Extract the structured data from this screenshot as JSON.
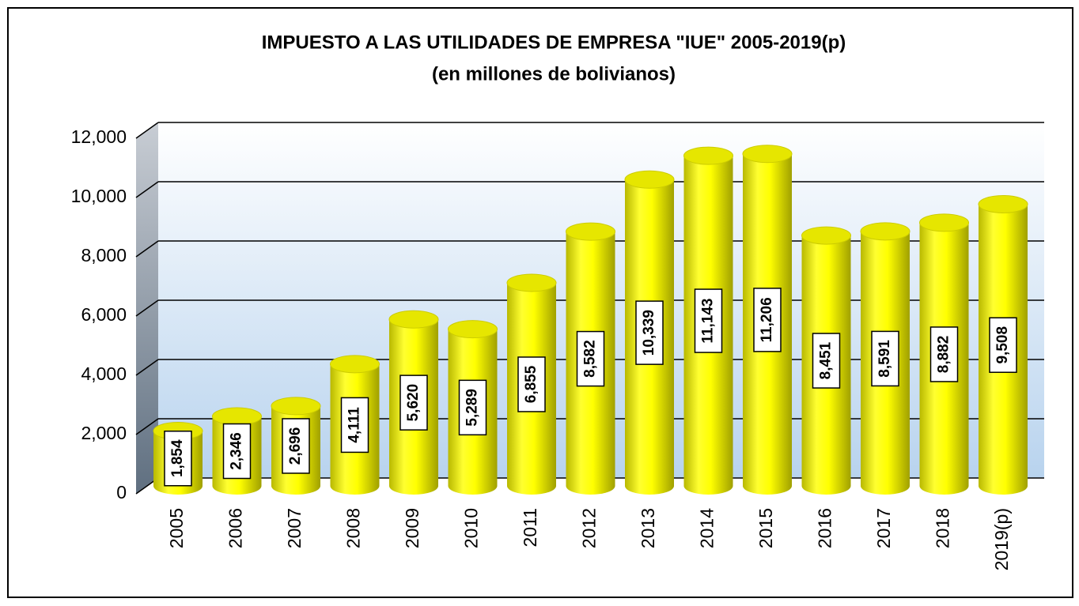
{
  "chart_data": {
    "type": "bar",
    "title": "IMPUESTO A LAS UTILIDADES DE EMPRESA \"IUE\" 2005-2019(p)",
    "subtitle": "(en millones de bolivianos)",
    "categories": [
      "2005",
      "2006",
      "2007",
      "2008",
      "2009",
      "2010",
      "2011",
      "2012",
      "2013",
      "2014",
      "2015",
      "2016",
      "2017",
      "2018",
      "2019(p)"
    ],
    "values": [
      1854,
      2346,
      2696,
      4111,
      5620,
      5289,
      6855,
      8582,
      10339,
      11143,
      11206,
      8451,
      8591,
      8882,
      9508
    ],
    "value_labels": [
      "1,854",
      "2,346",
      "2,696",
      "4,111",
      "5,620",
      "5,289",
      "6,855",
      "8,582",
      "10,339",
      "11,143",
      "11,206",
      "8,451",
      "8,591",
      "8,882",
      "9,508"
    ],
    "color": "#ffff00",
    "ylim": [
      0,
      12000
    ],
    "yticks": [
      0,
      {
        "value": 2000,
        "label": "2,000"
      },
      {
        "value": 4000,
        "label": "4,000"
      },
      {
        "value": 6000,
        "label": "6,000"
      },
      {
        "value": 8000,
        "label": "8,000"
      },
      {
        "value": 10000,
        "label": "10,000"
      },
      {
        "value": 12000,
        "label": "12,000"
      }
    ],
    "grid": true
  }
}
